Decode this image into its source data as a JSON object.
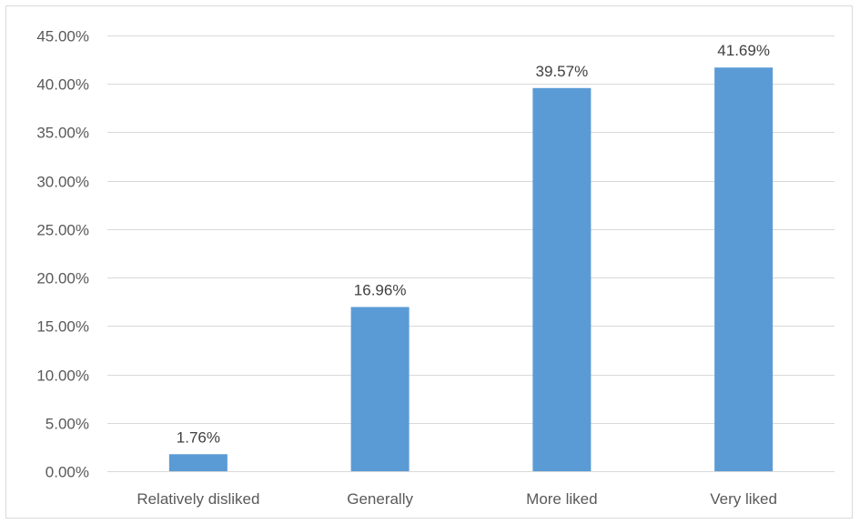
{
  "chart_data": {
    "type": "bar",
    "title": "",
    "xlabel": "",
    "ylabel": "",
    "categories": [
      "Relatively disliked",
      "Generally",
      "More liked",
      "Very liked"
    ],
    "values": [
      1.76,
      16.96,
      39.57,
      41.69
    ],
    "data_labels": [
      "1.76%",
      "16.96%",
      "39.57%",
      "41.69%"
    ],
    "ylim": [
      0,
      45
    ],
    "y_ticks": [
      0,
      5,
      10,
      15,
      20,
      25,
      30,
      35,
      40,
      45
    ],
    "y_tick_labels": [
      "0.00%",
      "5.00%",
      "10.00%",
      "15.00%",
      "20.00%",
      "25.00%",
      "30.00%",
      "35.00%",
      "40.00%",
      "45.00%"
    ],
    "grid": true,
    "legend": "none",
    "bar_color": "#5b9bd5",
    "grid_color": "#d9d9d9"
  }
}
